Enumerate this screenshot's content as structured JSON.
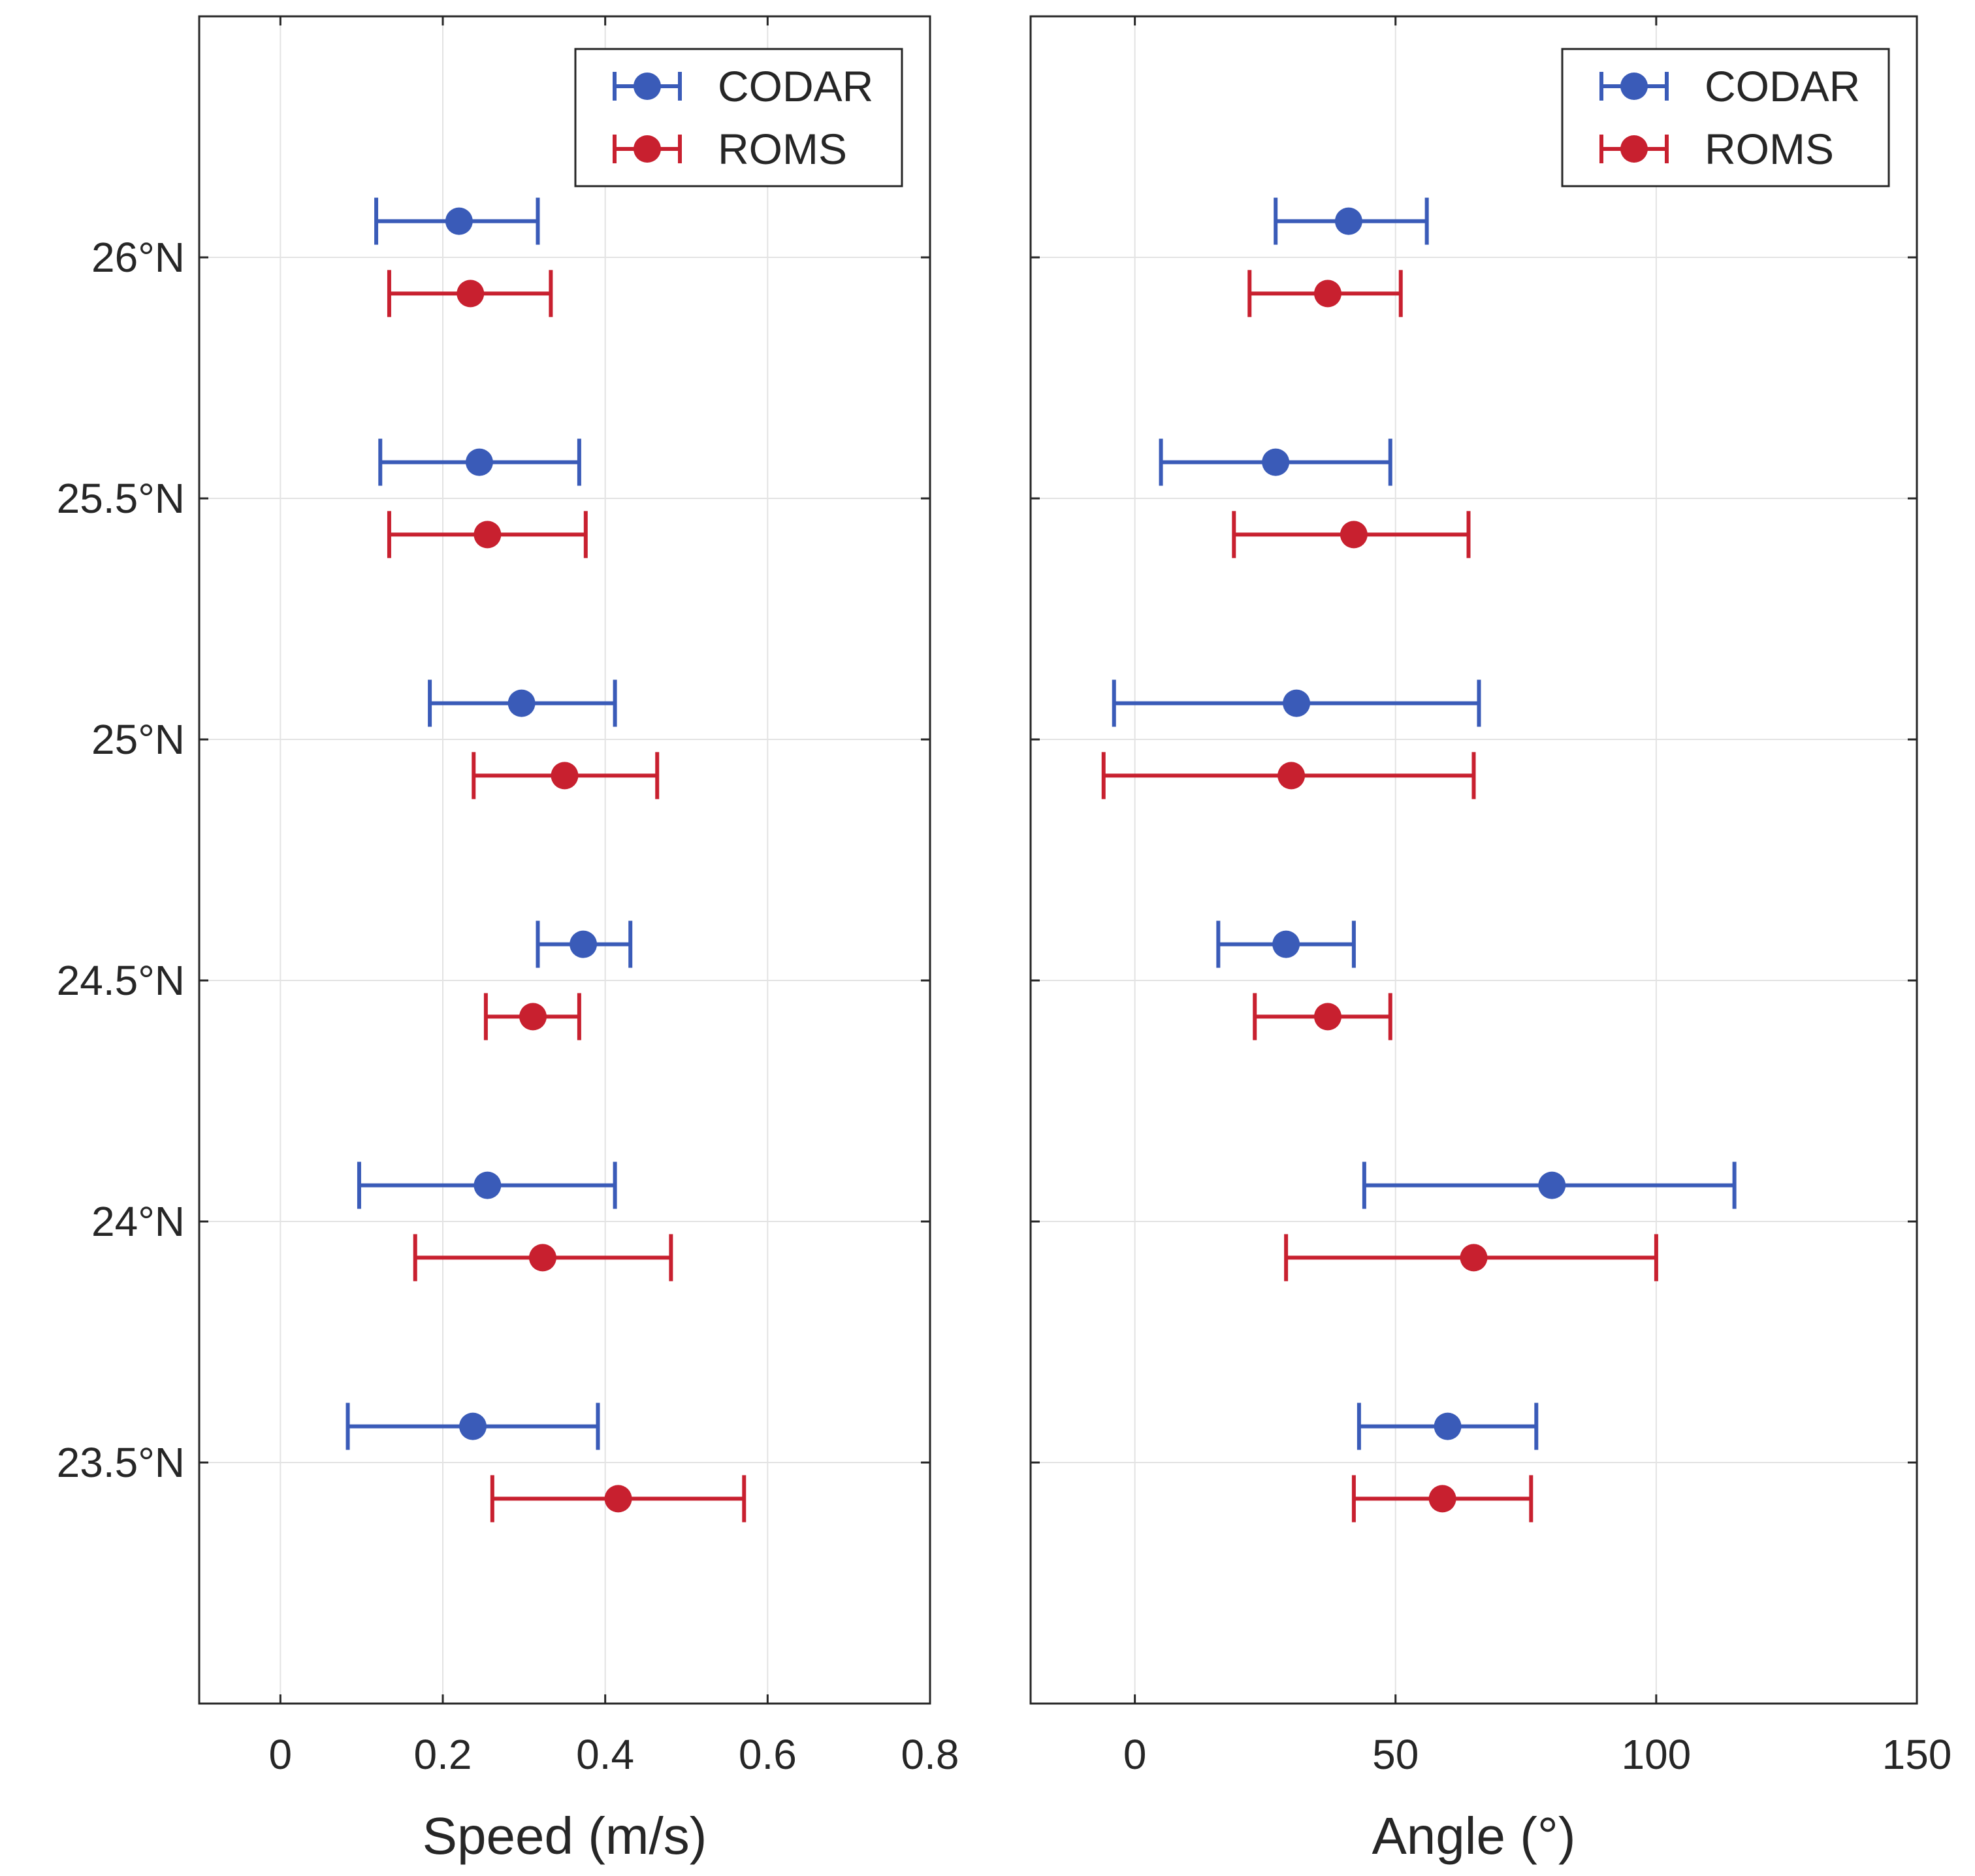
{
  "chart_data": [
    {
      "type": "errorbar",
      "xlabel": "Speed (m/s)",
      "ylabel": "",
      "xlim": [
        -0.1,
        0.8
      ],
      "ylim": [
        23.0,
        26.5
      ],
      "x_ticks": [
        0,
        0.2,
        0.4,
        0.6,
        0.8
      ],
      "x_tick_labels": [
        "0",
        "0.2",
        "0.4",
        "0.6",
        "0.8"
      ],
      "y_ticks": [
        23.5,
        24,
        24.5,
        25,
        25.5,
        26
      ],
      "y_tick_labels": [
        "23.5°N",
        "24°N",
        "24.5°N",
        "25°N",
        "25.5°N",
        "26°N"
      ],
      "grid": true,
      "legend_position": "top-right",
      "series": [
        {
          "name": "CODAR",
          "color": "#3a5bb8",
          "y_offset": 0.075,
          "latitudes": [
            26,
            25.5,
            25,
            24.5,
            24,
            23.5
          ],
          "values": [
            0.22,
            0.245,
            0.297,
            0.373,
            0.255,
            0.237
          ],
          "lower": [
            0.118,
            0.123,
            0.184,
            0.317,
            0.097,
            0.083
          ],
          "upper": [
            0.317,
            0.368,
            0.412,
            0.431,
            0.412,
            0.391
          ]
        },
        {
          "name": "ROMS",
          "color": "#c8202f",
          "y_offset": -0.075,
          "latitudes": [
            26,
            25.5,
            25,
            24.5,
            24,
            23.5
          ],
          "values": [
            0.234,
            0.255,
            0.35,
            0.311,
            0.323,
            0.416
          ],
          "lower": [
            0.134,
            0.134,
            0.238,
            0.253,
            0.166,
            0.261
          ],
          "upper": [
            0.333,
            0.376,
            0.464,
            0.368,
            0.481,
            0.571
          ]
        }
      ]
    },
    {
      "type": "errorbar",
      "xlabel": "Angle (°)",
      "ylabel": "",
      "xlim": [
        -20,
        150
      ],
      "ylim": [
        23.0,
        26.5
      ],
      "x_ticks": [
        0,
        50,
        100,
        150
      ],
      "x_tick_labels": [
        "0",
        "50",
        "100",
        "150"
      ],
      "y_ticks": [
        23.5,
        24,
        24.5,
        25,
        25.5,
        26
      ],
      "y_tick_labels": [
        "23.5°N",
        "24°N",
        "24.5°N",
        "25°N",
        "25.5°N",
        "26°N"
      ],
      "grid": true,
      "legend_position": "top-right",
      "series": [
        {
          "name": "CODAR",
          "color": "#3a5bb8",
          "y_offset": 0.075,
          "latitudes": [
            26,
            25.5,
            25,
            24.5,
            24,
            23.5
          ],
          "values": [
            41,
            27,
            31,
            29,
            80,
            60
          ],
          "lower": [
            27,
            5,
            -4,
            16,
            44,
            43
          ],
          "upper": [
            56,
            49,
            66,
            42,
            115,
            77
          ]
        },
        {
          "name": "ROMS",
          "color": "#c8202f",
          "y_offset": -0.075,
          "latitudes": [
            26,
            25.5,
            25,
            24.5,
            24,
            23.5
          ],
          "values": [
            37,
            42,
            30,
            37,
            65,
            59
          ],
          "lower": [
            22,
            19,
            -6,
            23,
            29,
            42
          ],
          "upper": [
            51,
            64,
            65,
            49,
            100,
            76
          ]
        }
      ]
    }
  ]
}
